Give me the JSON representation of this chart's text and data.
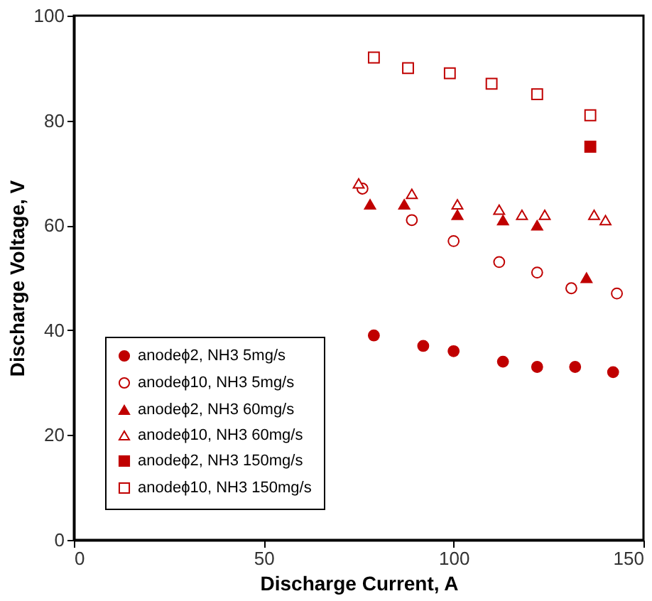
{
  "chart_data": {
    "type": "scatter",
    "xlabel": "Discharge Current, A",
    "ylabel": "Discharge Voltage, V",
    "xlim": [
      0,
      150
    ],
    "xticks": [
      0,
      50,
      100,
      150
    ],
    "ylim": [
      0,
      100
    ],
    "yticks": [
      0,
      20,
      40,
      60,
      80,
      100
    ],
    "grid": false,
    "legend": "bottom left",
    "series": [
      {
        "name": "anodeϕ2, NH3 5mg/s",
        "color": "#c00000",
        "marker": "circle",
        "x": [
          79,
          92,
          100,
          113,
          122,
          132,
          142
        ],
        "values": [
          39,
          37,
          36,
          34,
          33,
          33,
          32
        ]
      },
      {
        "name": "anodeϕ10, NH3 5mg/s",
        "color": "#c00000",
        "marker": "circle-open",
        "x": [
          76,
          89,
          100,
          112,
          122,
          131,
          143
        ],
        "values": [
          67,
          61,
          57,
          53,
          51,
          48,
          47
        ]
      },
      {
        "name": "anodeϕ2, NH3 60mg/s",
        "color": "#c00000",
        "marker": "triangle",
        "x": [
          78,
          87,
          101,
          113,
          122,
          135
        ],
        "values": [
          64,
          64,
          62,
          61,
          60,
          50
        ]
      },
      {
        "name": "anodeϕ10, NH3 60mg/s",
        "color": "#c00000",
        "marker": "triangle-open",
        "x": [
          75,
          89,
          101,
          112,
          118,
          124,
          137,
          140
        ],
        "values": [
          68,
          66,
          64,
          63,
          62,
          62,
          62,
          61
        ]
      },
      {
        "name": "anodeϕ2, NH3 150mg/s",
        "color": "#c00000",
        "marker": "square",
        "x": [
          136
        ],
        "values": [
          75
        ]
      },
      {
        "name": "anodeϕ10, NH3 150mg/s",
        "color": "#c00000",
        "marker": "square-open",
        "x": [
          79,
          88,
          99,
          110,
          122,
          136
        ],
        "values": [
          92,
          90,
          89,
          87,
          85,
          81
        ]
      }
    ]
  }
}
